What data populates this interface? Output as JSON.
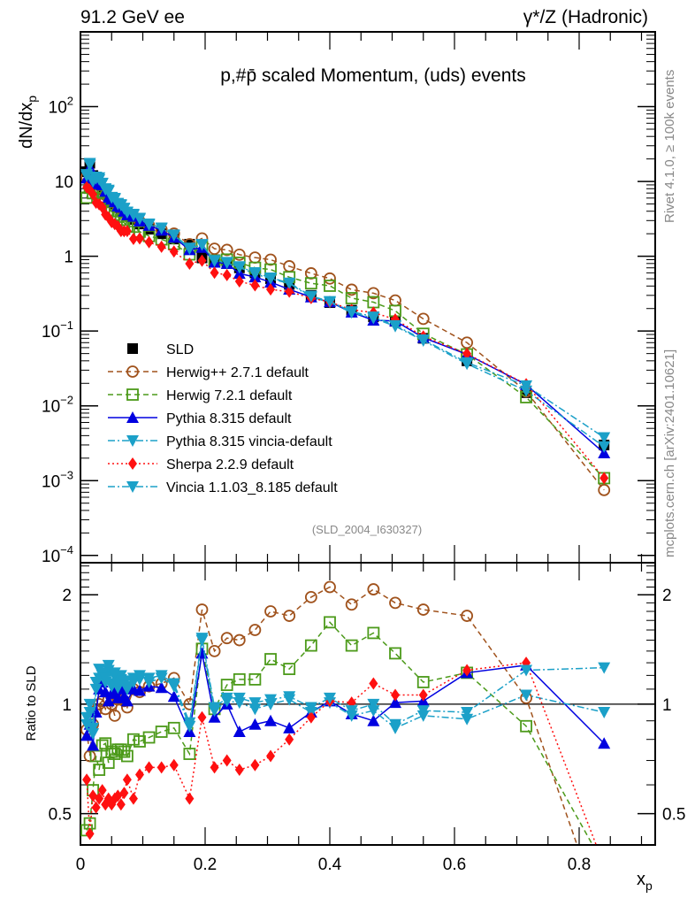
{
  "header": {
    "left": "91.2 GeV ee",
    "right": "γ*/Z (Hadronic)"
  },
  "side_texts": {
    "rivet": "Rivet 4.1.0, ≥ 100k events",
    "mcplots": "mcplots.cern.ch [arXiv:2401.10621]"
  },
  "chart_data": [
    {
      "panel": "main",
      "type": "line",
      "title": "p,#p̄ scaled Momentum, (uds) events",
      "xlabel": "x_p",
      "ylabel": "dN/dx_p",
      "yscale": "log",
      "xlim": [
        0,
        0.922
      ],
      "ylim": [
        8e-05,
        1000
      ],
      "y_tick_labels": [
        "10^-4",
        "10^-3",
        "10^-2",
        "10^-1",
        "1",
        "10",
        "10^2"
      ],
      "x_tick_labels": [
        "0",
        "0.2",
        "0.4",
        "0.6",
        "0.8"
      ],
      "legend_position": "left-middle",
      "annotation": "(SLD_2004_I630327)",
      "x": [
        0.01,
        0.015,
        0.02,
        0.025,
        0.03,
        0.035,
        0.04,
        0.045,
        0.05,
        0.055,
        0.06,
        0.065,
        0.07,
        0.075,
        0.085,
        0.095,
        0.11,
        0.13,
        0.15,
        0.175,
        0.195,
        0.215,
        0.235,
        0.255,
        0.28,
        0.305,
        0.335,
        0.37,
        0.4,
        0.435,
        0.47,
        0.505,
        0.55,
        0.62,
        0.715,
        0.84
      ],
      "series": [
        {
          "name": "SLD",
          "color": "#000000",
          "marker": "square-filled",
          "line": "none",
          "values": [
            13.5,
            17.5,
            12.0,
            10.0,
            9.0,
            7.8,
            6.8,
            6.0,
            5.4,
            4.9,
            4.5,
            4.1,
            3.8,
            3.5,
            3.1,
            2.7,
            2.3,
            2.0,
            1.7,
            1.45,
            0.95,
            0.9,
            0.8,
            0.7,
            0.6,
            0.5,
            0.42,
            0.3,
            0.24,
            0.19,
            0.155,
            0.135,
            0.08,
            0.04,
            0.015,
            0.003
          ]
        },
        {
          "name": "Herwig++ 2.7.1 default",
          "color": "#a0521c",
          "marker": "circle-open",
          "line": "dashed",
          "ratio": [
            0.85,
            0.72,
            0.88,
            0.96,
            1.0,
            1.02,
            0.97,
            1.03,
            1.0,
            0.93,
            1.03,
            1.04,
            1.02,
            0.98,
            1.1,
            1.08,
            1.12,
            1.14,
            1.18,
            1.0,
            1.82,
            1.4,
            1.52,
            1.5,
            1.6,
            1.8,
            1.75,
            1.97,
            2.1,
            1.88,
            2.07,
            1.9,
            1.82,
            1.75,
            1.04,
            0.25
          ]
        },
        {
          "name": "Herwig 7.2.1 default",
          "color": "#4c9a1a",
          "marker": "square-open",
          "line": "dashed",
          "ratio": [
            0.45,
            0.47,
            0.58,
            0.72,
            0.66,
            0.77,
            0.78,
            0.69,
            0.74,
            0.73,
            0.75,
            0.75,
            0.74,
            0.72,
            0.8,
            0.79,
            0.81,
            0.84,
            0.86,
            0.73,
            1.42,
            0.97,
            1.13,
            1.17,
            1.17,
            1.33,
            1.25,
            1.45,
            1.68,
            1.45,
            1.57,
            1.38,
            1.15,
            1.22,
            0.87,
            0.36
          ]
        },
        {
          "name": "Pythia 8.315 default",
          "color": "#0000e0",
          "marker": "triangle-up-filled",
          "line": "solid",
          "ratio": [
            0.82,
            0.88,
            0.77,
            0.95,
            1.1,
            1.15,
            1.08,
            1.02,
            1.07,
            1.09,
            1.04,
            1.1,
            1.05,
            1.02,
            1.1,
            1.09,
            1.12,
            1.11,
            1.05,
            0.84,
            1.38,
            0.92,
            1.0,
            0.84,
            0.88,
            0.9,
            0.86,
            0.95,
            1.02,
            0.94,
            0.9,
            1.01,
            1.02,
            1.22,
            1.28,
            0.78
          ]
        },
        {
          "name": "Pythia 8.315 vincia-default",
          "color": "#1ba0c8",
          "marker": "triangle-down-filled",
          "line": "dash-dot",
          "ratio": [
            0.88,
            0.95,
            0.83,
            1.1,
            1.18,
            1.2,
            1.15,
            1.24,
            1.12,
            1.19,
            1.11,
            1.17,
            1.14,
            1.1,
            1.15,
            1.17,
            1.15,
            1.18,
            1.12,
            0.87,
            1.5,
            0.96,
            1.02,
            1.01,
            0.97,
            1.0,
            1.03,
            0.95,
            1.01,
            0.93,
            0.96,
            0.86,
            0.93,
            0.91,
            1.06,
            0.95
          ]
        },
        {
          "name": "Sherpa 2.2.9 default",
          "color": "#ff1010",
          "marker": "diamond-filled",
          "line": "dotted",
          "ratio": [
            0.62,
            0.44,
            0.56,
            0.52,
            0.55,
            0.58,
            0.53,
            0.55,
            0.53,
            0.55,
            0.56,
            0.53,
            0.57,
            0.62,
            0.55,
            0.64,
            0.67,
            0.67,
            0.68,
            0.55,
            0.92,
            0.67,
            0.7,
            0.66,
            0.68,
            0.72,
            0.8,
            0.92,
            1.02,
            1.01,
            1.14,
            1.06,
            1.06,
            1.24,
            1.3,
            0.36
          ]
        },
        {
          "name": "Vincia 1.1.03_8.185 default",
          "color": "#1ba0c8",
          "marker": "triangle-down-filled",
          "line": "dash-dot",
          "ratio": [
            0.92,
            1.0,
            0.86,
            1.15,
            1.25,
            1.22,
            1.18,
            1.28,
            1.14,
            1.22,
            1.14,
            1.2,
            1.16,
            1.12,
            1.18,
            1.2,
            1.18,
            1.2,
            1.14,
            0.89,
            1.52,
            0.98,
            1.04,
            1.04,
            1.01,
            1.03,
            1.05,
            0.98,
            1.04,
            0.96,
            1.0,
            0.88,
            0.96,
            0.95,
            1.24,
            1.26
          ]
        }
      ]
    },
    {
      "panel": "ratio",
      "type": "line",
      "ylabel": "Ratio to SLD",
      "xlabel": "x_p",
      "yscale": "log",
      "ylim": [
        0.41,
        2.45
      ],
      "y_tick_labels": [
        "0.5",
        "1",
        "2"
      ],
      "x_tick_labels": [
        "0",
        "0.2",
        "0.4",
        "0.6",
        "0.8"
      ],
      "reference_line": 1
    }
  ]
}
